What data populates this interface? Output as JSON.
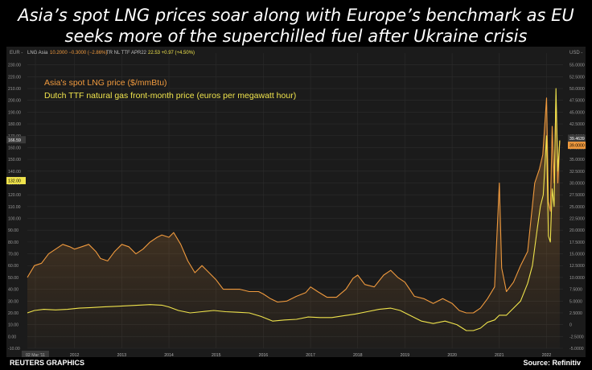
{
  "headline": {
    "line1": "Asia’s spot LNG prices soar along with Europe’s benchmark as EU",
    "line2": "seeks more of the superchilled fuel after Ukraine crisis"
  },
  "toolbar": {
    "left_unit": "EUR -",
    "series1_name": "LNG Asia",
    "series1_values": "10.2000 −0.3000 (−2.86%)",
    "series2_name": "TR NL TTF APR22",
    "series2_values": "22.53 +0.97 (+4.50%)",
    "right_unit": "USD -"
  },
  "footer": {
    "credit": "REUTERS GRAPHICS",
    "source": "Source: Refinitiv"
  },
  "colors": {
    "lng": "#f09a3e",
    "ttf": "#efe34c",
    "background": "#1b1b1b",
    "grid": "#2c2c2c"
  },
  "chart_data": {
    "type": "line",
    "title": "",
    "legend": [
      "Asia's spot LNG price ($/mmBtu)",
      "Dutch TTF natural gas front-month price (euros per megawatt hour)"
    ],
    "legend_position": "top-left",
    "grid": true,
    "x_ticks": [
      "02 Mar '11",
      "2012",
      "2013",
      "2014",
      "2015",
      "2016",
      "2017",
      "2018",
      "2019",
      "2020",
      "2021",
      "2022"
    ],
    "x_tick_years": [
      2011.17,
      2012.0,
      2013.0,
      2014.0,
      2015.0,
      2016.0,
      2017.0,
      2018.0,
      2019.0,
      2020.0,
      2021.0,
      2022.0
    ],
    "xlim": [
      2011.0,
      2022.35
    ],
    "left_axis": {
      "label": "EUR",
      "ylim": [
        -10,
        240
      ],
      "ticks": [
        230,
        220,
        210,
        200,
        190,
        180,
        170,
        160,
        150,
        140,
        130,
        120,
        110,
        100,
        90,
        80,
        70,
        60,
        50,
        40,
        30,
        20,
        10,
        0,
        -10
      ],
      "tick_labels": [
        "230.00",
        "220.00",
        "210.00",
        "200.00",
        "190.00",
        "180.00",
        "170.00",
        "160.00",
        "150.00",
        "140.00",
        "130.00",
        "120.00",
        "110.00",
        "100.00",
        "90.00",
        "80.00",
        "70.00",
        "60.00",
        "50.00",
        "40.00",
        "30.00",
        "20.00",
        "10.00",
        "0.00",
        "-10.00"
      ],
      "marker_labels": [
        "166.59",
        "132.00"
      ],
      "marker_values": [
        166.59,
        132.0
      ]
    },
    "right_axis": {
      "label": "USD",
      "ylim": [
        -5,
        57.5
      ],
      "ticks": [
        55,
        52.5,
        50,
        47.5,
        45,
        42.5,
        40,
        37.5,
        35,
        32.5,
        30,
        27.5,
        25,
        22.5,
        20,
        17.5,
        15,
        12.5,
        10,
        7.5,
        5,
        2.5,
        0,
        -2.5,
        -5
      ],
      "tick_labels": [
        "55.0000",
        "52.5000",
        "50.0000",
        "47.5000",
        "45.0000",
        "42.5000",
        "40.0000",
        "37.5000",
        "35.0000",
        "32.5000",
        "30.0000",
        "27.5000",
        "25.0000",
        "22.5000",
        "20.0000",
        "17.5000",
        "15.0000",
        "12.5000",
        "10.0000",
        "7.5000",
        "5.0000",
        "2.5000",
        "0",
        "-2.5000",
        "-5.0000"
      ],
      "marker_labels": [
        "39.4639",
        "39.0000"
      ],
      "marker_values": [
        39.4639,
        39.0
      ]
    },
    "series": [
      {
        "name": "Asia's spot LNG price ($/mmBtu)",
        "axis": "right",
        "x": [
          2011.0,
          2011.15,
          2011.3,
          2011.45,
          2011.6,
          2011.75,
          2011.9,
          2012.0,
          2012.15,
          2012.3,
          2012.45,
          2012.55,
          2012.7,
          2012.85,
          2013.0,
          2013.15,
          2013.3,
          2013.45,
          2013.6,
          2013.75,
          2013.85,
          2014.0,
          2014.1,
          2014.25,
          2014.4,
          2014.55,
          2014.7,
          2014.85,
          2015.0,
          2015.15,
          2015.3,
          2015.5,
          2015.7,
          2015.9,
          2016.0,
          2016.15,
          2016.3,
          2016.5,
          2016.7,
          2016.9,
          2017.0,
          2017.15,
          2017.35,
          2017.55,
          2017.75,
          2017.9,
          2018.0,
          2018.15,
          2018.35,
          2018.55,
          2018.7,
          2018.85,
          2019.0,
          2019.2,
          2019.4,
          2019.6,
          2019.8,
          2020.0,
          2020.15,
          2020.3,
          2020.45,
          2020.6,
          2020.75,
          2020.9,
          2021.0,
          2021.05,
          2021.15,
          2021.3,
          2021.45,
          2021.6,
          2021.75,
          2021.85,
          2021.92,
          2022.0,
          2022.04,
          2022.08,
          2022.12,
          2022.16,
          2022.2,
          2022.24,
          2022.28
        ],
        "y": [
          10.0,
          12.5,
          13.0,
          15.0,
          16.0,
          17.0,
          16.5,
          16.0,
          16.5,
          17.0,
          15.5,
          14.0,
          13.5,
          15.5,
          17.0,
          16.5,
          15.0,
          16.0,
          17.5,
          18.5,
          19.0,
          18.5,
          19.5,
          17.0,
          13.5,
          11.0,
          12.5,
          11.0,
          9.5,
          7.5,
          7.5,
          7.5,
          7.0,
          7.0,
          6.5,
          5.5,
          4.8,
          5.0,
          6.0,
          6.8,
          8.0,
          7.0,
          5.8,
          5.8,
          7.5,
          9.8,
          10.5,
          8.5,
          8.0,
          10.5,
          11.5,
          10.0,
          9.0,
          6.0,
          5.5,
          4.5,
          5.5,
          4.5,
          3.0,
          2.5,
          2.5,
          3.5,
          5.5,
          8.0,
          30.0,
          12.0,
          7.0,
          9.0,
          12.5,
          15.5,
          30.0,
          33.0,
          36.0,
          48.0,
          26.0,
          24.0,
          42.0,
          30.0,
          48.5,
          30.0,
          39.0
        ]
      },
      {
        "name": "Dutch TTF natural gas front-month price (euros per megawatt hour)",
        "axis": "left",
        "x": [
          2011.0,
          2011.15,
          2011.35,
          2011.6,
          2011.85,
          2012.1,
          2012.35,
          2012.6,
          2012.85,
          2013.1,
          2013.35,
          2013.6,
          2013.85,
          2014.0,
          2014.2,
          2014.45,
          2014.7,
          2014.95,
          2015.2,
          2015.45,
          2015.7,
          2015.95,
          2016.2,
          2016.45,
          2016.7,
          2016.95,
          2017.2,
          2017.45,
          2017.7,
          2017.95,
          2018.2,
          2018.45,
          2018.7,
          2018.9,
          2019.1,
          2019.35,
          2019.6,
          2019.85,
          2020.1,
          2020.3,
          2020.45,
          2020.6,
          2020.75,
          2020.9,
          2021.0,
          2021.15,
          2021.3,
          2021.45,
          2021.6,
          2021.7,
          2021.8,
          2021.87,
          2021.93,
          2022.0,
          2022.04,
          2022.08,
          2022.12,
          2022.16,
          2022.2,
          2022.24,
          2022.28
        ],
        "y": [
          20.0,
          22.0,
          23.0,
          22.5,
          23.0,
          24.0,
          24.5,
          25.0,
          25.5,
          26.0,
          26.5,
          27.0,
          26.5,
          25.0,
          22.0,
          20.0,
          21.0,
          22.0,
          21.0,
          20.5,
          20.0,
          17.0,
          13.0,
          14.0,
          14.5,
          16.5,
          16.0,
          16.0,
          17.5,
          19.0,
          21.0,
          23.0,
          24.0,
          22.0,
          18.0,
          13.0,
          11.0,
          13.0,
          10.0,
          5.0,
          5.0,
          7.0,
          12.0,
          14.0,
          18.0,
          18.0,
          24.0,
          30.0,
          45.0,
          60.0,
          90.0,
          110.0,
          120.0,
          170.0,
          85.0,
          80.0,
          125.0,
          110.0,
          210.0,
          140.0,
          166.0
        ]
      }
    ]
  }
}
